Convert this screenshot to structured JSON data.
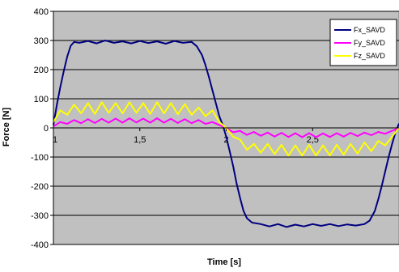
{
  "chart_data": {
    "type": "line",
    "title": "",
    "xlabel": "Time [s]",
    "ylabel": "Force [N]",
    "xlim": [
      1,
      3
    ],
    "ylim": [
      -400,
      400
    ],
    "y_ticks": [
      400,
      300,
      200,
      100,
      0,
      -100,
      -200,
      -300,
      -400
    ],
    "y_tick_labels": [
      "400",
      "300",
      "200",
      "100",
      "0",
      "-100",
      "-200",
      "-300",
      "-400"
    ],
    "x_ticks": [
      1,
      1.5,
      2,
      2.5
    ],
    "x_tick_labels": [
      "1",
      "1,5",
      "2",
      "2,5"
    ],
    "grid": true,
    "legend_position": "top-right",
    "plot_background": "#c0c0c0",
    "series": [
      {
        "name": "Fx_SAVD",
        "color": "#000080",
        "x": [
          1.0,
          1.02,
          1.04,
          1.06,
          1.08,
          1.1,
          1.12,
          1.15,
          1.2,
          1.25,
          1.3,
          1.35,
          1.4,
          1.45,
          1.5,
          1.55,
          1.6,
          1.65,
          1.7,
          1.75,
          1.8,
          1.83,
          1.86,
          1.88,
          1.9,
          1.92,
          1.94,
          1.96,
          1.98,
          2.0,
          2.02,
          2.04,
          2.06,
          2.08,
          2.1,
          2.12,
          2.15,
          2.2,
          2.25,
          2.3,
          2.35,
          2.4,
          2.45,
          2.5,
          2.55,
          2.6,
          2.65,
          2.7,
          2.75,
          2.8,
          2.83,
          2.86,
          2.88,
          2.9,
          2.92,
          2.94,
          2.96,
          2.98,
          3.0
        ],
        "y": [
          10,
          80,
          140,
          195,
          245,
          282,
          295,
          292,
          298,
          290,
          300,
          292,
          297,
          290,
          298,
          291,
          297,
          289,
          298,
          292,
          295,
          280,
          250,
          215,
          175,
          130,
          85,
          40,
          10,
          -30,
          -80,
          -130,
          -190,
          -240,
          -285,
          -310,
          -325,
          -330,
          -338,
          -330,
          -340,
          -332,
          -338,
          -330,
          -336,
          -330,
          -337,
          -331,
          -335,
          -330,
          -318,
          -285,
          -245,
          -200,
          -150,
          -100,
          -55,
          -15,
          15
        ]
      },
      {
        "name": "Fy_SAVD",
        "color": "#ff00ff",
        "x": [
          1.0,
          1.04,
          1.08,
          1.12,
          1.16,
          1.2,
          1.24,
          1.28,
          1.32,
          1.36,
          1.4,
          1.44,
          1.48,
          1.52,
          1.56,
          1.6,
          1.64,
          1.68,
          1.72,
          1.76,
          1.8,
          1.84,
          1.88,
          1.92,
          1.96,
          2.0,
          2.04,
          2.08,
          2.12,
          2.16,
          2.2,
          2.24,
          2.28,
          2.32,
          2.36,
          2.4,
          2.44,
          2.48,
          2.52,
          2.56,
          2.6,
          2.64,
          2.68,
          2.72,
          2.76,
          2.8,
          2.84,
          2.88,
          2.92,
          2.96,
          3.0
        ],
        "y": [
          5,
          20,
          14,
          27,
          16,
          30,
          17,
          31,
          18,
          32,
          18,
          33,
          19,
          32,
          18,
          33,
          18,
          31,
          17,
          30,
          16,
          27,
          14,
          20,
          10,
          0,
          -15,
          -10,
          -24,
          -14,
          -27,
          -16,
          -30,
          -17,
          -31,
          -18,
          -32,
          -18,
          -32,
          -19,
          -31,
          -18,
          -30,
          -17,
          -28,
          -16,
          -25,
          -14,
          -20,
          -10,
          0
        ]
      },
      {
        "name": "Fz_SAVD",
        "color": "#ffff00",
        "x": [
          1.0,
          1.04,
          1.08,
          1.12,
          1.16,
          1.2,
          1.24,
          1.28,
          1.32,
          1.36,
          1.4,
          1.44,
          1.48,
          1.52,
          1.56,
          1.6,
          1.64,
          1.68,
          1.72,
          1.76,
          1.8,
          1.84,
          1.88,
          1.92,
          1.96,
          2.0,
          2.04,
          2.08,
          2.12,
          2.16,
          2.2,
          2.24,
          2.28,
          2.32,
          2.36,
          2.4,
          2.44,
          2.48,
          2.52,
          2.56,
          2.6,
          2.64,
          2.68,
          2.72,
          2.76,
          2.8,
          2.84,
          2.88,
          2.92,
          2.96,
          3.0
        ],
        "y": [
          20,
          60,
          45,
          80,
          50,
          85,
          48,
          88,
          52,
          85,
          50,
          88,
          52,
          85,
          48,
          88,
          50,
          85,
          47,
          82,
          45,
          70,
          40,
          60,
          20,
          0,
          -30,
          -40,
          -75,
          -55,
          -85,
          -55,
          -90,
          -58,
          -95,
          -60,
          -95,
          -58,
          -95,
          -60,
          -95,
          -58,
          -92,
          -55,
          -88,
          -50,
          -80,
          -45,
          -60,
          -30,
          0
        ]
      }
    ]
  }
}
